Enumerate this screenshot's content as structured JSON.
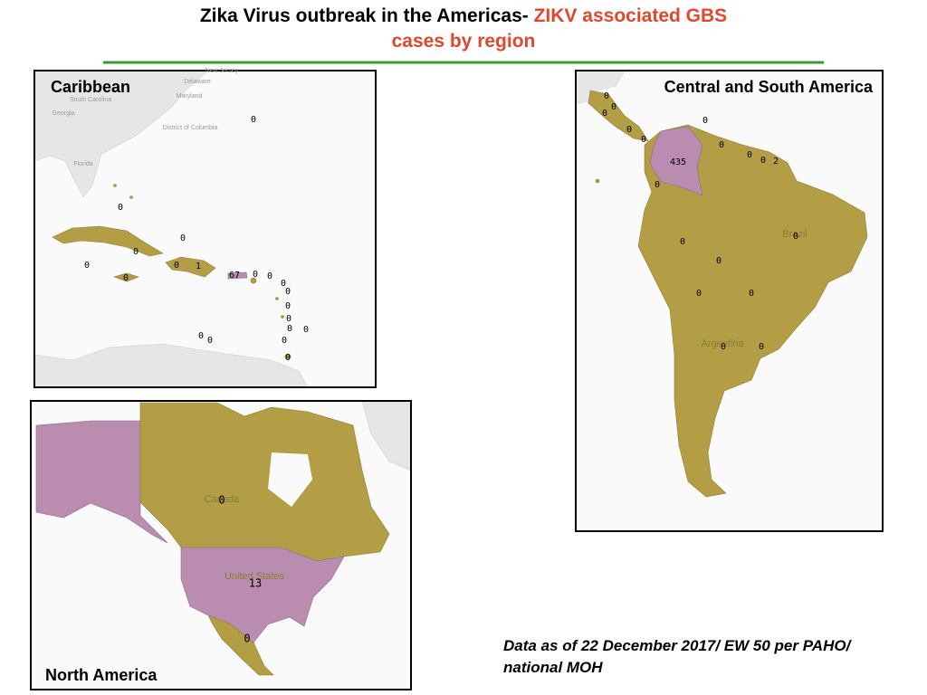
{
  "title": {
    "line1_black": "Zika Virus outbreak in the Americas- ",
    "line1_red": "ZIKV associated GBS",
    "line2_red": "cases by region"
  },
  "panels": [
    {
      "title": "Caribbean",
      "map_labels": [
        "New Jersey",
        "Delaware",
        "Maryland",
        "District of Columbia",
        "South Carolina",
        "Georgia",
        "Florida"
      ],
      "case_counts": [
        0,
        0,
        0,
        0,
        0,
        0,
        1,
        67,
        0,
        0,
        0,
        0,
        0,
        0,
        0,
        0,
        0,
        0,
        0,
        0,
        0
      ]
    },
    {
      "title": "Central and South America",
      "map_labels": [
        "Brazil",
        "Argentina"
      ],
      "case_counts": [
        0,
        0,
        0,
        0,
        0,
        0,
        0,
        435,
        0,
        0,
        2,
        0,
        0,
        0,
        0,
        0,
        0,
        0,
        0
      ]
    },
    {
      "title": "North America",
      "map_labels": [
        "Canada",
        "United States"
      ],
      "case_counts": [
        0,
        13,
        0
      ]
    }
  ],
  "footnote": "Data as of 22 December 2017/ EW 50 per PAHO/ national MOH"
}
